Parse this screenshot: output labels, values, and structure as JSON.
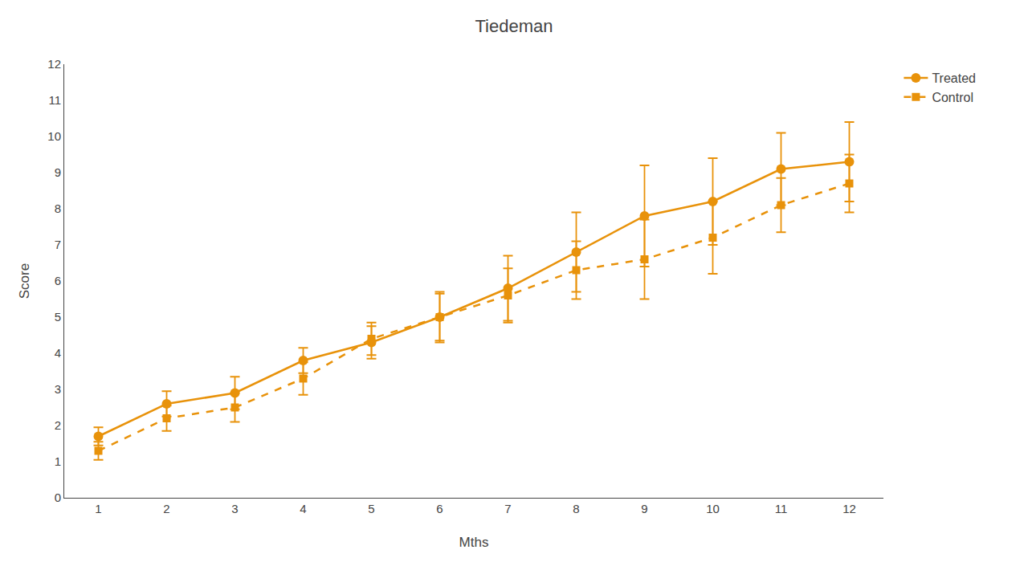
{
  "chart_data": {
    "type": "line",
    "title": "Tiedeman",
    "xlabel": "Mths",
    "ylabel": "Score",
    "x": [
      1,
      2,
      3,
      4,
      5,
      6,
      7,
      8,
      9,
      10,
      11,
      12
    ],
    "series": [
      {
        "name": "Treated",
        "color": "#E8920A",
        "marker": "circle",
        "line_style": "solid",
        "values": [
          1.7,
          2.6,
          2.9,
          3.8,
          4.3,
          5.0,
          5.8,
          6.8,
          7.8,
          8.2,
          9.1,
          9.3
        ],
        "errors": [
          0.25,
          0.35,
          0.45,
          0.35,
          0.45,
          0.7,
          0.9,
          1.1,
          1.4,
          1.2,
          1.0,
          1.1
        ]
      },
      {
        "name": "Control",
        "color": "#E8920A",
        "marker": "square",
        "line_style": "dash",
        "values": [
          1.3,
          2.2,
          2.5,
          3.3,
          4.4,
          5.0,
          5.6,
          6.3,
          6.6,
          7.2,
          8.1,
          8.7
        ],
        "errors": [
          0.25,
          0.35,
          0.4,
          0.45,
          0.45,
          0.65,
          0.75,
          0.8,
          1.1,
          1.0,
          0.75,
          0.8
        ]
      }
    ],
    "xlim": [
      0.5,
      12.5
    ],
    "xticks": [
      1,
      2,
      3,
      4,
      5,
      6,
      7,
      8,
      9,
      10,
      11,
      12
    ],
    "ylim": [
      0,
      12
    ],
    "yticks": [
      0,
      1,
      2,
      3,
      4,
      5,
      6,
      7,
      8,
      9,
      10,
      11,
      12
    ],
    "grid": false,
    "legend": "upper right"
  }
}
